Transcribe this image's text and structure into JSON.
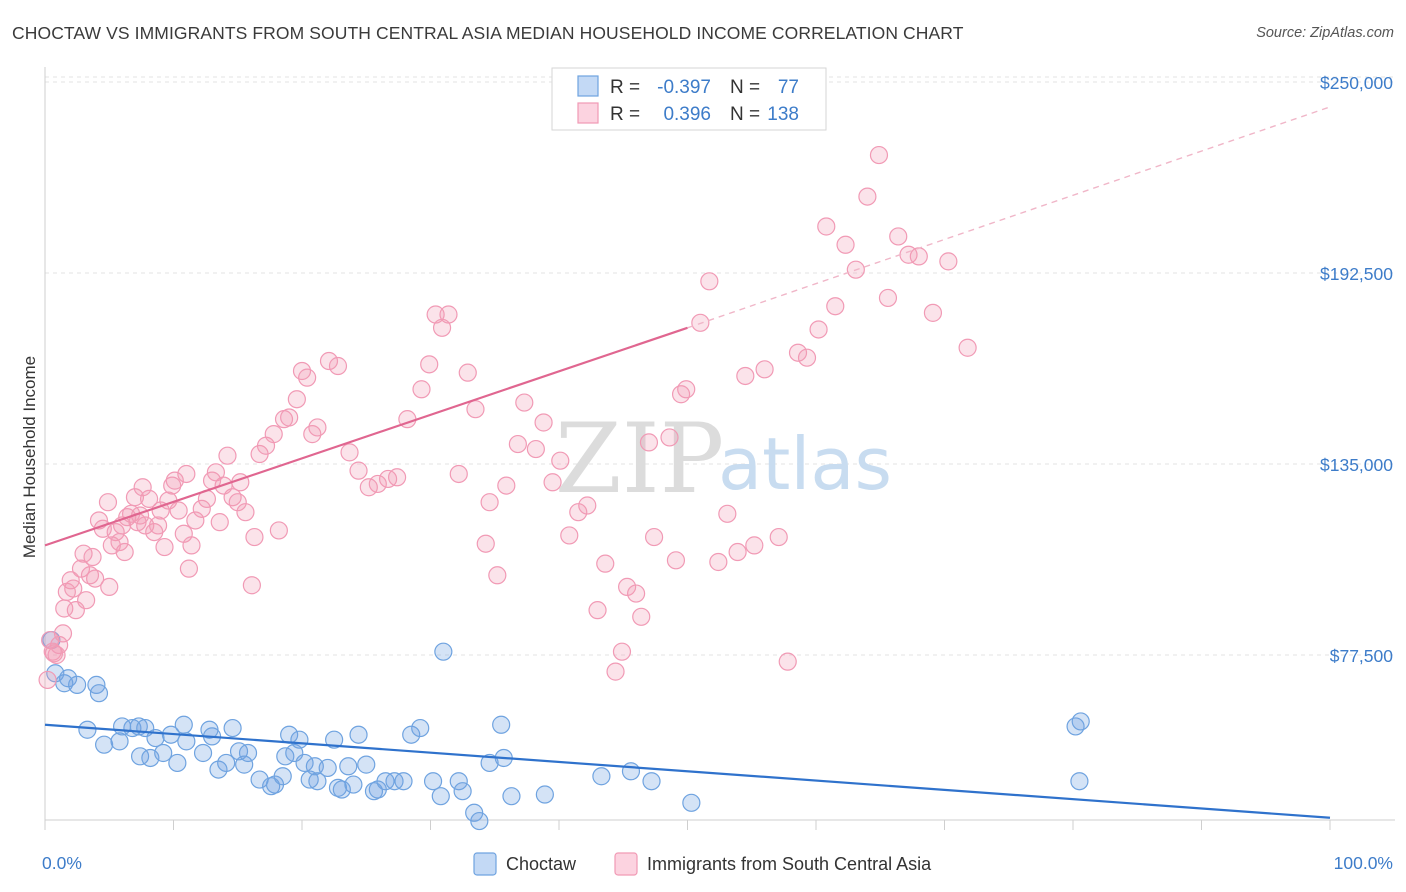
{
  "header": {
    "title": "CHOCTAW VS IMMIGRANTS FROM SOUTH CENTRAL ASIA MEDIAN HOUSEHOLD INCOME CORRELATION CHART",
    "source": "Source: ZipAtlas.com"
  },
  "watermark": {
    "zip": "ZIP",
    "atlas": "atlas"
  },
  "legend": {
    "r_label": "R =",
    "n_label": "N =",
    "rows": [
      {
        "series": "Choctaw",
        "r": "-0.397",
        "n": "77"
      },
      {
        "series": "Immigrants from South Central Asia",
        "r": "0.396",
        "n": "138"
      }
    ]
  },
  "chart_data": {
    "type": "scatter",
    "title": "CHOCTAW VS IMMIGRANTS FROM SOUTH CENTRAL ASIA MEDIAN HOUSEHOLD INCOME CORRELATION CHART",
    "xlabel": "",
    "ylabel": "Median Household Income",
    "xlim": [
      0,
      100
    ],
    "ylim": [
      25000,
      257500
    ],
    "x_tick_labels": [
      "0.0%",
      "100.0%"
    ],
    "y_ticks": [
      {
        "value": 77500,
        "label": "$77,500"
      },
      {
        "value": 135000,
        "label": "$135,000"
      },
      {
        "value": 192500,
        "label": "$192,500"
      },
      {
        "value": 250000,
        "label": "$250,000"
      }
    ],
    "grid": true,
    "legend_position": "top-center",
    "colors": {
      "choctaw": "#6fa3e0",
      "choctaw_line": "#2f72cc",
      "immigrants": "#f19ab5",
      "immigrants_line": "#e06690"
    },
    "series": [
      {
        "name": "Choctaw",
        "r": -0.397,
        "n": 77,
        "trend": {
          "x": [
            0,
            100
          ],
          "y": [
            56500,
            28500
          ],
          "dashed_to": null
        },
        "points": [
          [
            0.5,
            82000
          ],
          [
            0.8,
            72000
          ],
          [
            1.5,
            69000
          ],
          [
            1.8,
            70500
          ],
          [
            2.5,
            68500
          ],
          [
            4,
            68500
          ],
          [
            4.2,
            66000
          ],
          [
            3.3,
            55000
          ],
          [
            4.6,
            50500
          ],
          [
            5.8,
            51500
          ],
          [
            6,
            56000
          ],
          [
            6.8,
            55500
          ],
          [
            7.3,
            56000
          ],
          [
            7.8,
            55500
          ],
          [
            7.4,
            47000
          ],
          [
            8.2,
            46500
          ],
          [
            8.6,
            52500
          ],
          [
            9.2,
            48000
          ],
          [
            9.8,
            53500
          ],
          [
            10.3,
            45000
          ],
          [
            10.8,
            56500
          ],
          [
            11,
            51500
          ],
          [
            12.8,
            55000
          ],
          [
            13,
            53000
          ],
          [
            12.3,
            48000
          ],
          [
            13.5,
            43000
          ],
          [
            14.1,
            45000
          ],
          [
            14.6,
            55500
          ],
          [
            15.1,
            48500
          ],
          [
            15.5,
            44500
          ],
          [
            15.8,
            48000
          ],
          [
            16.7,
            40000
          ],
          [
            17.6,
            38000
          ],
          [
            17.9,
            38500
          ],
          [
            18.5,
            41000
          ],
          [
            18.7,
            47000
          ],
          [
            19,
            53500
          ],
          [
            19.4,
            48000
          ],
          [
            19.8,
            52000
          ],
          [
            20.2,
            45000
          ],
          [
            20.6,
            40000
          ],
          [
            21,
            44000
          ],
          [
            21.2,
            39500
          ],
          [
            22,
            43500
          ],
          [
            22.5,
            52000
          ],
          [
            22.8,
            37500
          ],
          [
            23.1,
            37000
          ],
          [
            23.6,
            44000
          ],
          [
            24,
            38500
          ],
          [
            24.4,
            53500
          ],
          [
            25,
            44500
          ],
          [
            25.6,
            36500
          ],
          [
            25.9,
            37000
          ],
          [
            26.5,
            39500
          ],
          [
            27.2,
            39500
          ],
          [
            27.9,
            39500
          ],
          [
            28.5,
            53500
          ],
          [
            29.2,
            55500
          ],
          [
            30.2,
            39500
          ],
          [
            30.8,
            35000
          ],
          [
            31,
            78500
          ],
          [
            32.2,
            39500
          ],
          [
            32.5,
            36500
          ],
          [
            33.4,
            30000
          ],
          [
            33.8,
            27500
          ],
          [
            34.6,
            45000
          ],
          [
            35.7,
            46500
          ],
          [
            36.3,
            35000
          ],
          [
            35.5,
            56500
          ],
          [
            38.9,
            35500
          ],
          [
            43.3,
            41000
          ],
          [
            45.6,
            42500
          ],
          [
            50.3,
            33000
          ],
          [
            80.5,
            39500
          ],
          [
            80.2,
            56000
          ],
          [
            80.6,
            57500
          ],
          [
            47.2,
            39500
          ]
        ]
      },
      {
        "name": "Immigrants from South Central Asia",
        "r": 0.396,
        "n": 138,
        "trend": {
          "x": [
            0,
            50
          ],
          "y": [
            110500,
            176000
          ],
          "dashed_to": [
            100,
            242500
          ]
        },
        "points": [
          [
            0.2,
            70000
          ],
          [
            0.4,
            82000
          ],
          [
            0.6,
            78500
          ],
          [
            0.7,
            78000
          ],
          [
            0.9,
            77500
          ],
          [
            1.1,
            80500
          ],
          [
            1.4,
            84000
          ],
          [
            1.5,
            91500
          ],
          [
            1.7,
            96500
          ],
          [
            2,
            100000
          ],
          [
            2.2,
            97500
          ],
          [
            2.4,
            91000
          ],
          [
            2.8,
            103500
          ],
          [
            3,
            108000
          ],
          [
            3.2,
            94000
          ],
          [
            3.5,
            101500
          ],
          [
            3.7,
            107000
          ],
          [
            3.9,
            100500
          ],
          [
            4.2,
            118000
          ],
          [
            4.5,
            115500
          ],
          [
            4.9,
            123500
          ],
          [
            5,
            98000
          ],
          [
            5.2,
            110500
          ],
          [
            5.5,
            114500
          ],
          [
            5.8,
            111500
          ],
          [
            6,
            116500
          ],
          [
            6.2,
            108500
          ],
          [
            6.4,
            119000
          ],
          [
            6.7,
            120000
          ],
          [
            7,
            125000
          ],
          [
            7.2,
            117500
          ],
          [
            7.4,
            119500
          ],
          [
            7.6,
            128000
          ],
          [
            7.8,
            116500
          ],
          [
            8.1,
            124500
          ],
          [
            8.5,
            114500
          ],
          [
            8.8,
            116500
          ],
          [
            9,
            121000
          ],
          [
            9.3,
            110000
          ],
          [
            9.6,
            124000
          ],
          [
            9.9,
            128500
          ],
          [
            10.1,
            130000
          ],
          [
            10.4,
            121000
          ],
          [
            10.8,
            114000
          ],
          [
            11,
            132000
          ],
          [
            11.2,
            103500
          ],
          [
            11.4,
            110500
          ],
          [
            11.7,
            118000
          ],
          [
            12.2,
            121500
          ],
          [
            12.6,
            124500
          ],
          [
            13,
            130000
          ],
          [
            13.3,
            132500
          ],
          [
            13.6,
            117500
          ],
          [
            13.9,
            128500
          ],
          [
            14.2,
            137500
          ],
          [
            14.6,
            125000
          ],
          [
            15,
            123500
          ],
          [
            15.2,
            129500
          ],
          [
            15.6,
            120500
          ],
          [
            16.1,
            98500
          ],
          [
            16.3,
            113000
          ],
          [
            16.7,
            138000
          ],
          [
            17.2,
            140500
          ],
          [
            17.8,
            144000
          ],
          [
            18.2,
            115000
          ],
          [
            18.6,
            148500
          ],
          [
            19,
            149000
          ],
          [
            19.6,
            154500
          ],
          [
            20,
            163000
          ],
          [
            20.4,
            161000
          ],
          [
            20.8,
            144000
          ],
          [
            21.2,
            146000
          ],
          [
            22.1,
            166000
          ],
          [
            22.8,
            164500
          ],
          [
            23.7,
            138500
          ],
          [
            24.4,
            133000
          ],
          [
            25.2,
            128000
          ],
          [
            25.9,
            129000
          ],
          [
            26.7,
            130500
          ],
          [
            27.4,
            131000
          ],
          [
            28.2,
            148500
          ],
          [
            29.3,
            157500
          ],
          [
            29.9,
            165000
          ],
          [
            30.4,
            180000
          ],
          [
            30.9,
            176000
          ],
          [
            31.4,
            180000
          ],
          [
            32.2,
            132000
          ],
          [
            32.9,
            162500
          ],
          [
            33.5,
            151500
          ],
          [
            34.3,
            111000
          ],
          [
            34.6,
            123500
          ],
          [
            35.2,
            101500
          ],
          [
            35.9,
            128500
          ],
          [
            36.8,
            141000
          ],
          [
            37.3,
            153500
          ],
          [
            38.2,
            139500
          ],
          [
            38.8,
            147500
          ],
          [
            39.5,
            129500
          ],
          [
            40.1,
            136000
          ],
          [
            40.8,
            113500
          ],
          [
            41.5,
            120500
          ],
          [
            42.2,
            122500
          ],
          [
            43,
            91000
          ],
          [
            43.6,
            105000
          ],
          [
            44.4,
            72500
          ],
          [
            44.9,
            78500
          ],
          [
            45.3,
            98000
          ],
          [
            46,
            96000
          ],
          [
            46.4,
            89000
          ],
          [
            47,
            141500
          ],
          [
            47.4,
            113000
          ],
          [
            48.6,
            143000
          ],
          [
            49.1,
            106000
          ],
          [
            49.5,
            156000
          ],
          [
            49.9,
            157500
          ],
          [
            51,
            177500
          ],
          [
            51.7,
            190000
          ],
          [
            52.4,
            105500
          ],
          [
            53.1,
            120000
          ],
          [
            53.9,
            108500
          ],
          [
            54.5,
            161500
          ],
          [
            55.2,
            110500
          ],
          [
            56,
            163500
          ],
          [
            57.1,
            113000
          ],
          [
            57.8,
            75500
          ],
          [
            58.6,
            168500
          ],
          [
            59.3,
            167000
          ],
          [
            60.2,
            175500
          ],
          [
            60.8,
            206500
          ],
          [
            61.5,
            182500
          ],
          [
            62.3,
            201000
          ],
          [
            63.1,
            193500
          ],
          [
            64,
            215500
          ],
          [
            64.9,
            228000
          ],
          [
            65.6,
            185000
          ],
          [
            66.4,
            203500
          ],
          [
            67.2,
            198000
          ],
          [
            68,
            197500
          ],
          [
            69.1,
            180500
          ],
          [
            70.3,
            196000
          ],
          [
            71.8,
            170000
          ]
        ]
      }
    ]
  },
  "bottom_legend": [
    {
      "key": "choctaw",
      "label": "Choctaw"
    },
    {
      "key": "immigrants",
      "label": "Immigrants from South Central Asia"
    }
  ]
}
